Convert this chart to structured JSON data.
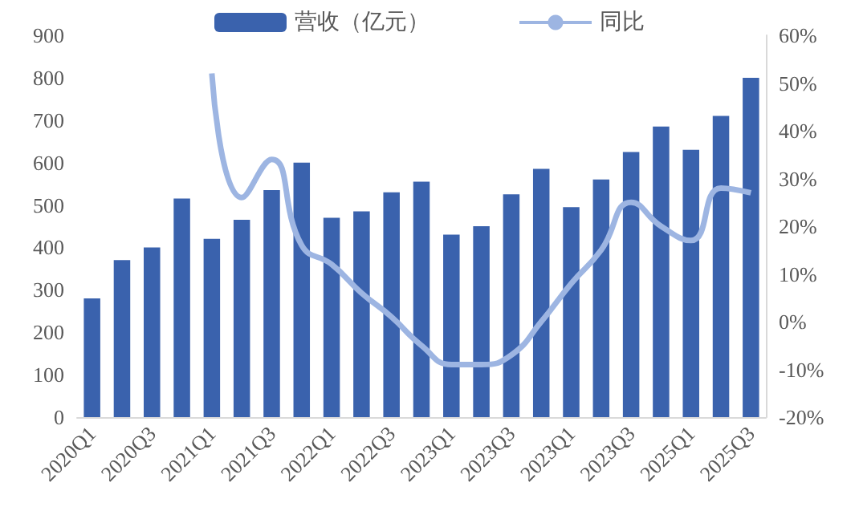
{
  "chart_data": {
    "type": "bar",
    "categories": [
      "2020Q1",
      null,
      "2020Q3",
      null,
      "2021Q1",
      null,
      "2021Q3",
      null,
      "2022Q1",
      null,
      "2022Q3",
      null,
      "2023Q1",
      null,
      "2023Q3",
      null,
      "2023Q1",
      null,
      "2023Q3",
      null,
      "2025Q1",
      null,
      "2025Q3"
    ],
    "series": [
      {
        "name": "营收（亿元）",
        "color": "#3a62ad",
        "values": [
          280,
          370,
          400,
          515,
          420,
          465,
          535,
          600,
          470,
          485,
          530,
          555,
          430,
          450,
          525,
          585,
          495,
          560,
          625,
          685,
          630,
          710,
          800
        ]
      },
      {
        "name": "同比",
        "type": "line",
        "axis": "y2",
        "color": "#9db5e2",
        "values": [
          null,
          null,
          null,
          null,
          52,
          26,
          34,
          16,
          12,
          6,
          1,
          -5,
          -9,
          -9,
          -7,
          0,
          8,
          15,
          25,
          20,
          17,
          28,
          27
        ]
      }
    ],
    "ylim": [
      0,
      900
    ],
    "yticks": [
      0,
      100,
      200,
      300,
      400,
      500,
      600,
      700,
      800,
      900
    ],
    "y2lim": [
      -20,
      60
    ],
    "y2ticks": [
      {
        "value": -20,
        "label": "-20%"
      },
      {
        "value": -10,
        "label": "-10%"
      },
      {
        "value": 0,
        "label": "0%"
      },
      {
        "value": 10,
        "label": "10%"
      },
      {
        "value": 20,
        "label": "20%"
      },
      {
        "value": 30,
        "label": "30%"
      },
      {
        "value": 40,
        "label": "40%"
      },
      {
        "value": 50,
        "label": "50%"
      },
      {
        "value": 60,
        "label": "60%"
      }
    ],
    "legend": "top",
    "grid": false,
    "marker": "none"
  }
}
